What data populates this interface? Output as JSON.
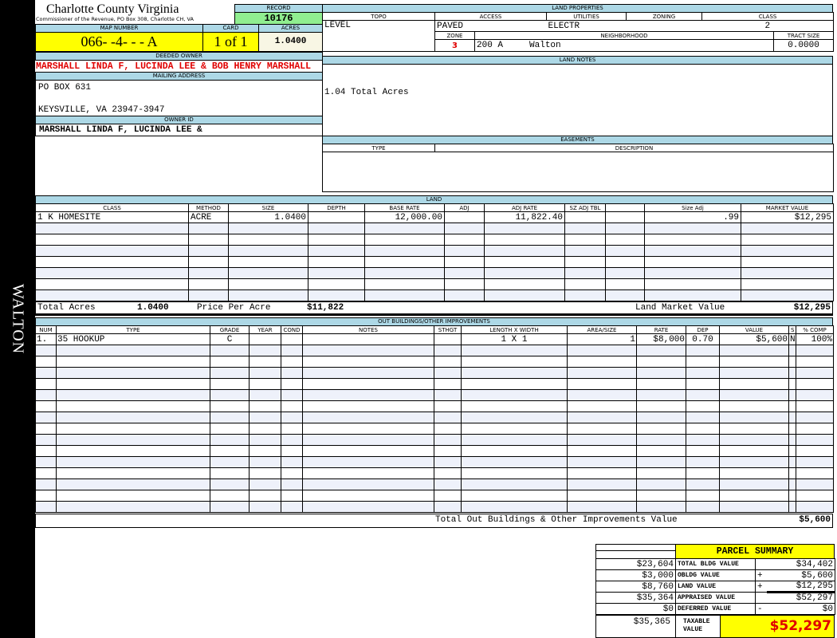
{
  "side_label": "WALTON",
  "header": {
    "title": "Charlotte County Virginia",
    "subtitle": "Commissioner of the Revenue, PO Box 308, Charlotte CH, VA"
  },
  "record": {
    "label": "RECORD",
    "value": "10176"
  },
  "map": {
    "map_label": "MAP NUMBER",
    "map_value": "066- -4- - - A",
    "card_label": "CARD",
    "card_value": "1 of 1",
    "acres_label": "ACRES",
    "acres_value": "1.0400"
  },
  "owner": {
    "deeded_label": "DEEDED OWNER",
    "deeded_value": "MARSHALL LINDA F, LUCINDA LEE & BOB HENRY MARSHALL",
    "mailing_label": "MAILING ADDRESS",
    "address_line1": "PO BOX 631",
    "address_line2": "KEYSVILLE, VA 23947-3947",
    "owner_id_label": "OWNER ID",
    "owner_id_value": "MARSHALL LINDA F, LUCINDA LEE &"
  },
  "land_properties": {
    "label": "LAND PROPERTIES",
    "topo_label": "TOPO",
    "access_label": "ACCESS",
    "utilities_label": "UTILITIES",
    "zoning_label": "ZONING",
    "class_label": "CLASS",
    "topo": "LEVEL",
    "access": "PAVED",
    "utilities": "ELECTR",
    "zoning": "",
    "class": "2",
    "zone_label": "ZONE",
    "neighborhood_label": "NEIGHBORHOOD",
    "tract_label": "TRACT SIZE",
    "zone": "3",
    "neighborhood_code": "200 A",
    "neighborhood": "Walton",
    "tract": "0.0000"
  },
  "land_notes": {
    "label": "LAND NOTES",
    "text": "1.04 Total Acres"
  },
  "easements": {
    "label": "EASEMENTS",
    "type_label": "TYPE",
    "description_label": "DESCRIPTION"
  },
  "land": {
    "label": "LAND",
    "headers": [
      "CLASS",
      "METHOD",
      "SIZE",
      "DEPTH",
      "BASE RATE",
      "ADJ",
      "ADJ RATE",
      "SZ ADJ TBL",
      "",
      "Size Adj",
      "MARKET VALUE"
    ],
    "rows": [
      [
        "1 K HOMESITE",
        "ACRE",
        "1.0400",
        "",
        "12,000.00",
        "",
        "11,822.40",
        "",
        "",
        ".99",
        "$12,295"
      ]
    ],
    "total_acres_label": "Total Acres",
    "total_acres": "1.0400",
    "price_per_acre_label": "Price Per Acre",
    "price_per_acre": "$11,822",
    "land_market_label": "Land Market Value",
    "land_market_value": "$12,295"
  },
  "outbuildings": {
    "label": "OUT BUILDINGS/OTHER IMPROVEMENTS",
    "headers": [
      "NUM",
      "TYPE",
      "GRADE",
      "YEAR",
      "COND",
      "NOTES",
      "STHGT",
      "LENGTH X WIDTH",
      "AREA/SIZE",
      "RATE",
      "DEP",
      "VALUE",
      "S",
      "% COMP"
    ],
    "rows": [
      [
        "1.",
        "35 HOOKUP",
        "C",
        "",
        "",
        "",
        "",
        "1 X 1",
        "1",
        "$8,000",
        "0.70",
        "$5,600",
        "N",
        "100%"
      ]
    ],
    "total_label": "Total Out Buildings & Other Improvements Value",
    "total_value": "$5,600"
  },
  "summary": {
    "title": "PARCEL SUMMARY",
    "rows": [
      {
        "prior": "$23,604",
        "label": "TOTAL BLDG VALUE",
        "op": "",
        "value": "$34,402"
      },
      {
        "prior": "$3,000",
        "label": "OBLDG VALUE",
        "op": "+",
        "value": "$5,600"
      },
      {
        "prior": "$8,760",
        "label": "LAND VALUE",
        "op": "+",
        "value": "$12,295"
      },
      {
        "prior": "$35,364",
        "label": "APPRAISED VALUE",
        "op": "",
        "value": "$52,297"
      },
      {
        "prior": "$0",
        "label": "DEFERRED VALUE",
        "op": "-",
        "value": "$0"
      }
    ],
    "taxable_prior": "$35,365",
    "taxable_label": "TAXABLE VALUE",
    "taxable_value": "$52,297"
  },
  "colors": {
    "label_bg": "#add8e6",
    "yellow": "#ffff00",
    "green": "#90ee90",
    "red": "#e00000"
  }
}
